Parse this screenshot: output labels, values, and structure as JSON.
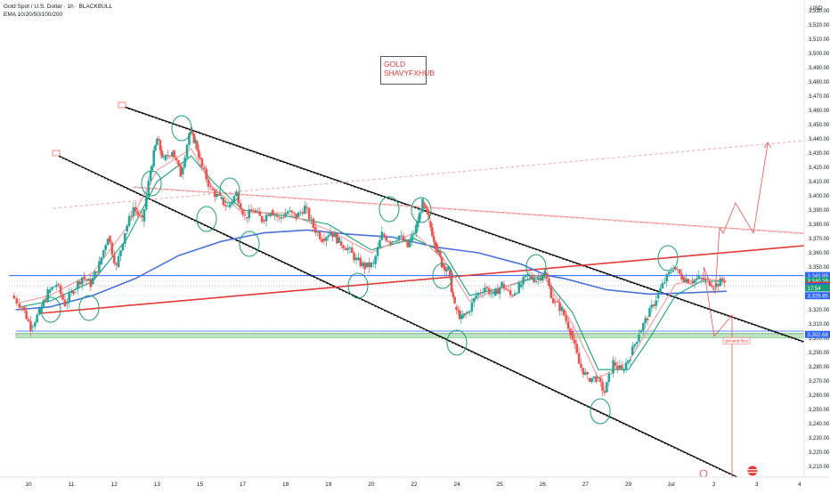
{
  "header": {
    "symbol_title": "Gold Spot / U.S. Dollar · 1h · BLACKBULL",
    "indicator": "EMA 10/20/50/100/200"
  },
  "watermark": {
    "line1": "GOLD",
    "line2": "SHAVYFXHUB"
  },
  "chart_data": {
    "type": "line",
    "title": "Gold Spot / U.S. Dollar · 1h · BLACKBULL",
    "currency_label": "USD",
    "ylim": [
      3200,
      3560
    ],
    "y_ticks": [
      3210,
      3220,
      3230,
      3240,
      3250,
      3260,
      3270,
      3280,
      3290,
      3300,
      3310,
      3320,
      3330,
      3340,
      3350,
      3360,
      3370,
      3380,
      3390,
      3400,
      3410,
      3420,
      3430,
      3440,
      3450,
      3460,
      3470,
      3480,
      3490,
      3500,
      3510,
      3520,
      3530,
      3540,
      3550
    ],
    "x_ticks": [
      {
        "label": "10",
        "t": 0.5
      },
      {
        "label": "11",
        "t": 1.5
      },
      {
        "label": "12",
        "t": 2.5
      },
      {
        "label": "13",
        "t": 3.5
      },
      {
        "label": "15",
        "t": 4.5
      },
      {
        "label": "17",
        "t": 5.5
      },
      {
        "label": "18",
        "t": 6.5
      },
      {
        "label": "19",
        "t": 7.5
      },
      {
        "label": "20",
        "t": 8.5
      },
      {
        "label": "22",
        "t": 9.5
      },
      {
        "label": "24",
        "t": 10.5
      },
      {
        "label": "25",
        "t": 11.5
      },
      {
        "label": "26",
        "t": 12.5
      },
      {
        "label": "27",
        "t": 13.5
      },
      {
        "label": "29",
        "t": 14.5
      },
      {
        "label": "Jul",
        "t": 15.5
      },
      {
        "label": "2",
        "t": 16.5
      },
      {
        "label": "3",
        "t": 17.5
      },
      {
        "label": "4",
        "t": 18.5
      }
    ],
    "series": [
      {
        "type": "candles",
        "color_up": "#26a69a",
        "color_down": "#ef5350",
        "points": [
          [
            0.1,
            3330
          ],
          [
            0.35,
            3322
          ],
          [
            0.55,
            3308
          ],
          [
            0.75,
            3318
          ],
          [
            0.95,
            3332
          ],
          [
            1.15,
            3338
          ],
          [
            1.35,
            3324
          ],
          [
            1.55,
            3334
          ],
          [
            1.75,
            3343
          ],
          [
            1.95,
            3338
          ],
          [
            2.15,
            3352
          ],
          [
            2.35,
            3372
          ],
          [
            2.55,
            3350
          ],
          [
            2.75,
            3375
          ],
          [
            2.95,
            3392
          ],
          [
            3.15,
            3382
          ],
          [
            3.35,
            3418
          ],
          [
            3.5,
            3440
          ],
          [
            3.65,
            3425
          ],
          [
            3.85,
            3432
          ],
          [
            4.05,
            3415
          ],
          [
            4.25,
            3444
          ],
          [
            4.4,
            3438
          ],
          [
            4.55,
            3420
          ],
          [
            4.75,
            3405
          ],
          [
            4.95,
            3398
          ],
          [
            5.15,
            3392
          ],
          [
            5.35,
            3402
          ],
          [
            5.55,
            3385
          ],
          [
            5.75,
            3390
          ],
          [
            5.95,
            3383
          ],
          [
            6.15,
            3390
          ],
          [
            6.35,
            3384
          ],
          [
            6.55,
            3389
          ],
          [
            6.75,
            3385
          ],
          [
            6.95,
            3392
          ],
          [
            7.15,
            3378
          ],
          [
            7.35,
            3370
          ],
          [
            7.55,
            3375
          ],
          [
            7.75,
            3368
          ],
          [
            7.95,
            3363
          ],
          [
            8.15,
            3355
          ],
          [
            8.35,
            3350
          ],
          [
            8.55,
            3352
          ],
          [
            8.75,
            3373
          ],
          [
            8.95,
            3368
          ],
          [
            9.15,
            3372
          ],
          [
            9.35,
            3364
          ],
          [
            9.55,
            3378
          ],
          [
            9.7,
            3395
          ],
          [
            9.85,
            3382
          ],
          [
            10.0,
            3366
          ],
          [
            10.15,
            3352
          ],
          [
            10.3,
            3348
          ],
          [
            10.45,
            3322
          ],
          [
            10.6,
            3314
          ],
          [
            10.75,
            3318
          ],
          [
            10.95,
            3330
          ],
          [
            11.15,
            3336
          ],
          [
            11.35,
            3330
          ],
          [
            11.55,
            3338
          ],
          [
            11.75,
            3330
          ],
          [
            11.95,
            3336
          ],
          [
            12.15,
            3344
          ],
          [
            12.35,
            3341
          ],
          [
            12.55,
            3346
          ],
          [
            12.75,
            3326
          ],
          [
            12.95,
            3320
          ],
          [
            13.15,
            3305
          ],
          [
            13.35,
            3282
          ],
          [
            13.55,
            3272
          ],
          [
            13.75,
            3272
          ],
          [
            13.95,
            3262
          ],
          [
            14.15,
            3283
          ],
          [
            14.35,
            3277
          ],
          [
            14.55,
            3288
          ],
          [
            14.75,
            3304
          ],
          [
            14.95,
            3315
          ],
          [
            15.15,
            3328
          ],
          [
            15.35,
            3340
          ],
          [
            15.55,
            3350
          ],
          [
            15.75,
            3343
          ],
          [
            15.95,
            3340
          ],
          [
            16.15,
            3342
          ],
          [
            16.35,
            3340
          ],
          [
            16.55,
            3338
          ],
          [
            16.75,
            3341
          ]
        ]
      },
      {
        "name": "EMA 200",
        "type": "line",
        "color": "#4a72d9",
        "x": [
          0.2,
          1.0,
          2.0,
          3.0,
          4.0,
          5.0,
          6.0,
          7.0,
          8.0,
          9.0,
          10.0,
          11.0,
          12.0,
          12.6,
          13.0,
          14.0,
          15.0,
          16.0,
          16.8
        ],
        "y": [
          3320,
          3322,
          3330,
          3342,
          3358,
          3368,
          3374,
          3376,
          3373,
          3371,
          3364,
          3360,
          3352,
          3344,
          3342,
          3334,
          3331,
          3332,
          3333
        ]
      },
      {
        "name": "EMA 20",
        "type": "line",
        "color": "#1b9e77",
        "x": [
          0.3,
          1.0,
          2.0,
          2.8,
          3.5,
          4.3,
          4.8,
          5.5,
          6.5,
          7.5,
          8.5,
          9.5,
          10.2,
          10.8,
          11.5,
          12.5,
          13.2,
          13.8,
          14.5,
          15.0,
          15.6,
          16.2,
          16.8
        ],
        "y": [
          3322,
          3326,
          3340,
          3370,
          3410,
          3428,
          3410,
          3390,
          3386,
          3380,
          3362,
          3370,
          3360,
          3330,
          3335,
          3344,
          3318,
          3278,
          3278,
          3300,
          3330,
          3340,
          3340
        ]
      },
      {
        "name": "EMA 10",
        "type": "line",
        "color": "#ef9a9a",
        "x": [
          0.3,
          1.0,
          2.0,
          2.8,
          3.5,
          4.3,
          4.8,
          5.5,
          6.5,
          7.5,
          8.5,
          9.5,
          10.2,
          10.8,
          11.5,
          12.5,
          13.2,
          13.8,
          14.5,
          15.0,
          15.6,
          16.2,
          16.8
        ],
        "y": [
          3325,
          3330,
          3346,
          3378,
          3418,
          3433,
          3406,
          3388,
          3388,
          3376,
          3360,
          3374,
          3355,
          3326,
          3335,
          3345,
          3310,
          3272,
          3283,
          3308,
          3338,
          3342,
          3340
        ]
      }
    ],
    "price_labels": [
      {
        "value": 3343.99,
        "text": "3,343.99",
        "color": "#2962ff"
      },
      {
        "value": 3340.29,
        "text": "3,340.29",
        "color": "#1b9e77"
      },
      {
        "value": 3337.18,
        "text": "3,337.18",
        "color": "#e53935"
      },
      {
        "value": 3336.2,
        "text": "3,336.20",
        "color": "#2962ff"
      },
      {
        "value": 3329.85,
        "text": "3,329.85",
        "color": "#2962ff"
      },
      {
        "value": 3302.68,
        "text": "3,302.68",
        "color": "#2962ff"
      }
    ],
    "countdown": "17:54",
    "annotations": [
      {
        "text": "demand floor",
        "x": 17.45,
        "y": 3298
      }
    ],
    "grid": false
  }
}
